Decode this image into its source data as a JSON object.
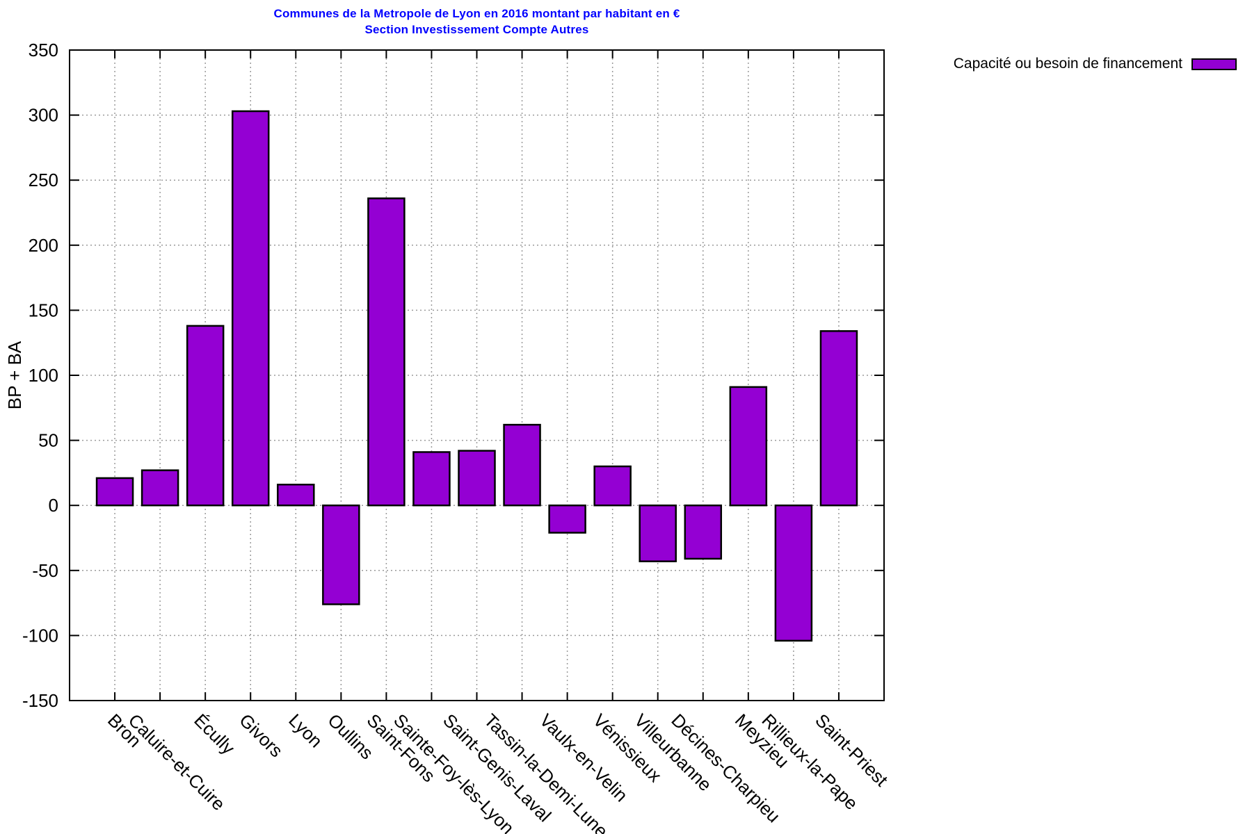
{
  "title": {
    "line1": "Communes de la Metropole de Lyon en 2016 montant par habitant en €",
    "line2": "Section Investissement Compte Autres",
    "color": "#0000ff"
  },
  "legend": {
    "label": "Capacité ou besoin de financement",
    "swatch_color": "#9400d3",
    "swatch_border": "#000000"
  },
  "axes": {
    "y_tick_labels": [
      "-150",
      "-100",
      "-50",
      "0",
      "50",
      "100",
      "150",
      "200",
      "250",
      "300",
      "350"
    ]
  },
  "chart_data": {
    "type": "bar",
    "title": "Communes de la Metropole de Lyon en 2016 montant par habitant en €",
    "subtitle": "Section Investissement Compte Autres",
    "xlabel": "",
    "ylabel": "BP + BA",
    "ylim": [
      -150,
      350
    ],
    "ytick_step": 50,
    "grid": true,
    "grid_style": "dotted",
    "legend_position": "top-right-outside",
    "categories": [
      "Bron",
      "Caluire-et-Cuire",
      "Écully",
      "Givors",
      "Lyon",
      "Oullins",
      "Saint-Fons",
      "Sainte-Foy-lès-Lyon",
      "Saint-Genis-Laval",
      "Tassin-la-Demi-Lune",
      "Vaulx-en-Velin",
      "Vénissieux",
      "Villeurbanne",
      "Décines-Charpieu",
      "Meyzieu",
      "Rillieux-la-Pape",
      "Saint-Priest"
    ],
    "series": [
      {
        "name": "Capacité ou besoin de financement",
        "color": "#9400d3",
        "values": [
          21,
          27,
          138,
          303,
          16,
          -76,
          236,
          41,
          42,
          62,
          -21,
          30,
          -43,
          -41,
          91,
          -104,
          134
        ]
      }
    ]
  }
}
